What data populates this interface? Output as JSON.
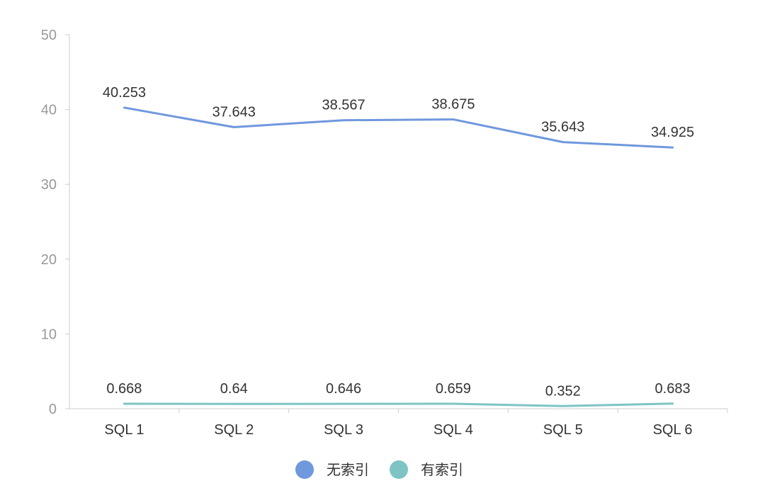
{
  "chart_data": {
    "type": "line",
    "title": "",
    "xlabel": "",
    "ylabel": "",
    "categories": [
      "SQL 1",
      "SQL 2",
      "SQL 3",
      "SQL 4",
      "SQL 5",
      "SQL 6"
    ],
    "yticks": [
      "0",
      "10",
      "20",
      "30",
      "40",
      "50"
    ],
    "ylim": [
      0,
      50
    ],
    "grid": false,
    "legend_position": "bottom-center",
    "series": [
      {
        "name": "无索引",
        "color": "#6f98dd",
        "values": [
          40.253,
          37.643,
          38.567,
          38.675,
          35.643,
          34.925
        ],
        "labels": [
          "40.253",
          "37.643",
          "38.567",
          "38.675",
          "35.643",
          "34.925"
        ]
      },
      {
        "name": "有索引",
        "color": "#7ec4c4",
        "values": [
          0.668,
          0.64,
          0.646,
          0.659,
          0.352,
          0.683
        ],
        "labels": [
          "0.668",
          "0.64",
          "0.646",
          "0.659",
          "0.352",
          "0.683"
        ]
      }
    ]
  }
}
